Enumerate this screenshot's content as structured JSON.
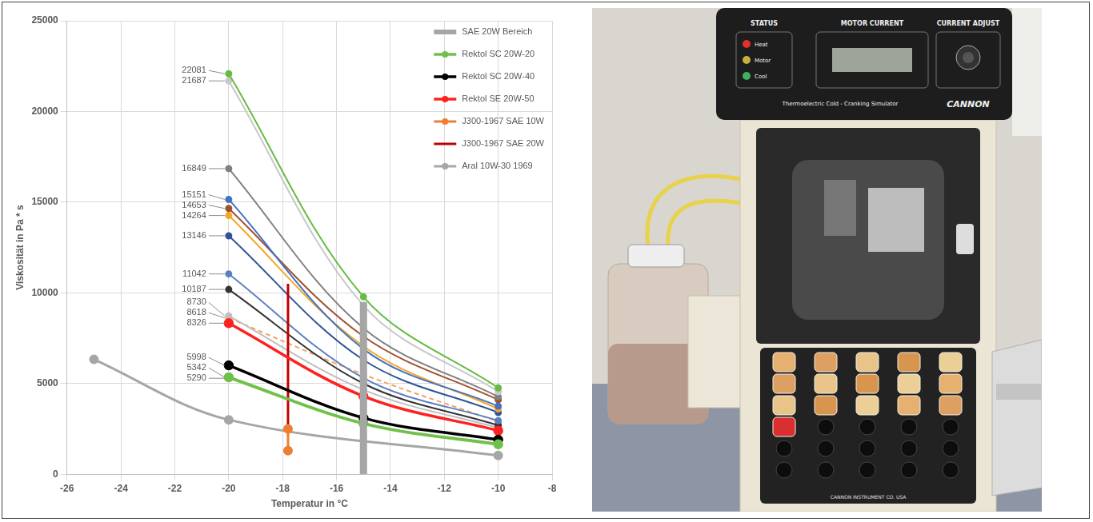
{
  "chart_data": {
    "type": "line",
    "x_label": "Temperatur in °C",
    "y_label": "Viskosität in Pa * s",
    "xlim": [
      -26,
      -8
    ],
    "xticks": [
      -26,
      -24,
      -22,
      -20,
      -18,
      -16,
      -14,
      -12,
      -10,
      -8
    ],
    "ylim": [
      0,
      25000
    ],
    "yticks": [
      0,
      5000,
      10000,
      15000,
      20000,
      25000
    ],
    "grid": true,
    "legend": "upper right",
    "data_labels": true,
    "series": [
      {
        "name": "SAE 20W Bereich",
        "color": "#a6a6a6",
        "x": [
          -15,
          -15
        ],
        "values": [
          0,
          9500
        ],
        "marker": "none",
        "line_style": "solid"
      },
      {
        "name": "Rektol SC 20W-20",
        "color": "#70c04c",
        "x": [
          -20,
          -15,
          -10
        ],
        "values": [
          5342,
          2800,
          1650
        ],
        "value_labels": [
          "5342",
          null,
          null
        ],
        "marker": "circle",
        "line_style": "solid"
      },
      {
        "name": "Rektol SC 20W-40",
        "color": "#000000",
        "x": [
          -20,
          -15,
          -10
        ],
        "values": [
          5998,
          3100,
          1900
        ],
        "value_labels": [
          "5998",
          null,
          null
        ],
        "marker": "circle",
        "line_style": "solid"
      },
      {
        "name": "Rektol SE 20W-50",
        "color": "#ff2020",
        "x": [
          -20,
          -15,
          -10
        ],
        "values": [
          8326,
          4300,
          2400
        ],
        "value_labels": [
          "8326",
          null,
          null
        ],
        "marker": "circle",
        "line_style": "solid"
      },
      {
        "name": "J300-1967 SAE 10W",
        "color": "#ed7d31",
        "x": [
          -17.8,
          -17.8
        ],
        "values": [
          1300,
          2500
        ],
        "marker": "circle",
        "line_style": "solid"
      },
      {
        "name": "J300-1967 SAE 20W",
        "color": "#c00000",
        "x": [
          -17.8,
          -17.8
        ],
        "values": [
          2500,
          10500
        ],
        "marker": "none",
        "line_style": "solid"
      },
      {
        "name": "Aral 10W-30 1969",
        "color": "#a6a6a6",
        "x": [
          -25,
          -20,
          -10
        ],
        "values": [
          6330,
          3000,
          1030
        ],
        "marker": "circle",
        "line_style": "solid"
      },
      {
        "color": "#66bb44",
        "x": [
          -20,
          -15,
          -10
        ],
        "values": [
          22081,
          9780,
          4760
        ],
        "value_labels": [
          "22081",
          null,
          null
        ],
        "marker": "circle",
        "line_style": "solid"
      },
      {
        "color": "#c8c8c8",
        "x": [
          -20,
          -15,
          -10
        ],
        "values": [
          21687,
          9300,
          4550
        ],
        "value_labels": [
          "21687",
          null,
          null
        ],
        "marker": "circle",
        "line_style": "solid"
      },
      {
        "color": "#808080",
        "x": [
          -20,
          -15,
          -10
        ],
        "values": [
          16849,
          8050,
          4270
        ],
        "value_labels": [
          "16849",
          null,
          null
        ],
        "marker": "circle",
        "line_style": "solid"
      },
      {
        "color": "#4472c4",
        "x": [
          -20,
          -15,
          -10
        ],
        "values": [
          15151,
          6900,
          3750
        ],
        "value_labels": [
          "15151",
          null,
          null
        ],
        "marker": "circle",
        "line_style": "solid"
      },
      {
        "color": "#a0522d",
        "x": [
          -20,
          -15,
          -10
        ],
        "values": [
          14653,
          7600,
          4100
        ],
        "value_labels": [
          "14653",
          null,
          null
        ],
        "marker": "circle",
        "line_style": "solid"
      },
      {
        "color": "#f5a623",
        "x": [
          -20,
          -15,
          -10
        ],
        "values": [
          14264,
          7050,
          3600
        ],
        "value_labels": [
          "14264",
          null,
          null
        ],
        "marker": "circle",
        "line_style": "solid"
      },
      {
        "color": "#2f5597",
        "x": [
          -20,
          -15,
          -10
        ],
        "values": [
          13146,
          6300,
          3400
        ],
        "value_labels": [
          "13146",
          null,
          null
        ],
        "marker": "circle",
        "line_style": "solid"
      },
      {
        "color": "#5b7fc0",
        "x": [
          -20,
          -15,
          -10
        ],
        "values": [
          11042,
          5300,
          2950
        ],
        "value_labels": [
          "11042",
          null,
          null
        ],
        "marker": "circle",
        "line_style": "solid"
      },
      {
        "color": "#333333",
        "x": [
          -20,
          -15,
          -10
        ],
        "values": [
          10187,
          5000,
          2700
        ],
        "value_labels": [
          "10187",
          null,
          null
        ],
        "marker": "circle",
        "line_style": "solid"
      },
      {
        "color": "#bfbfbf",
        "x": [
          -20,
          -15,
          -10
        ],
        "values": [
          8730,
          4650,
          2550
        ],
        "value_labels": [
          "8730",
          null,
          null
        ],
        "marker": "circle",
        "line_style": "solid"
      },
      {
        "color": "#f4a460",
        "x": [
          -20,
          -15,
          -10
        ],
        "values": [
          8618,
          5500,
          2900
        ],
        "value_labels": [
          "8618",
          null,
          null
        ],
        "marker": "circle",
        "line_style": "dashed"
      },
      {
        "color": "#92d050",
        "x": [
          -20,
          -15,
          -10
        ],
        "values": [
          5290,
          2750,
          1600
        ],
        "value_labels": [
          "5290",
          null,
          null
        ],
        "marker": "circle",
        "line_style": "solid"
      }
    ]
  },
  "photo": {
    "header_labels": [
      "STATUS",
      "MOTOR CURRENT",
      "CURRENT ADJUST"
    ],
    "status_lights": [
      "Heat",
      "Motor",
      "Cool"
    ],
    "caption": "Thermoelectric Cold - Cranking Simulator",
    "brand": "CANNON",
    "tray_label": "CANNON INSTRUMENT CO. USA"
  }
}
